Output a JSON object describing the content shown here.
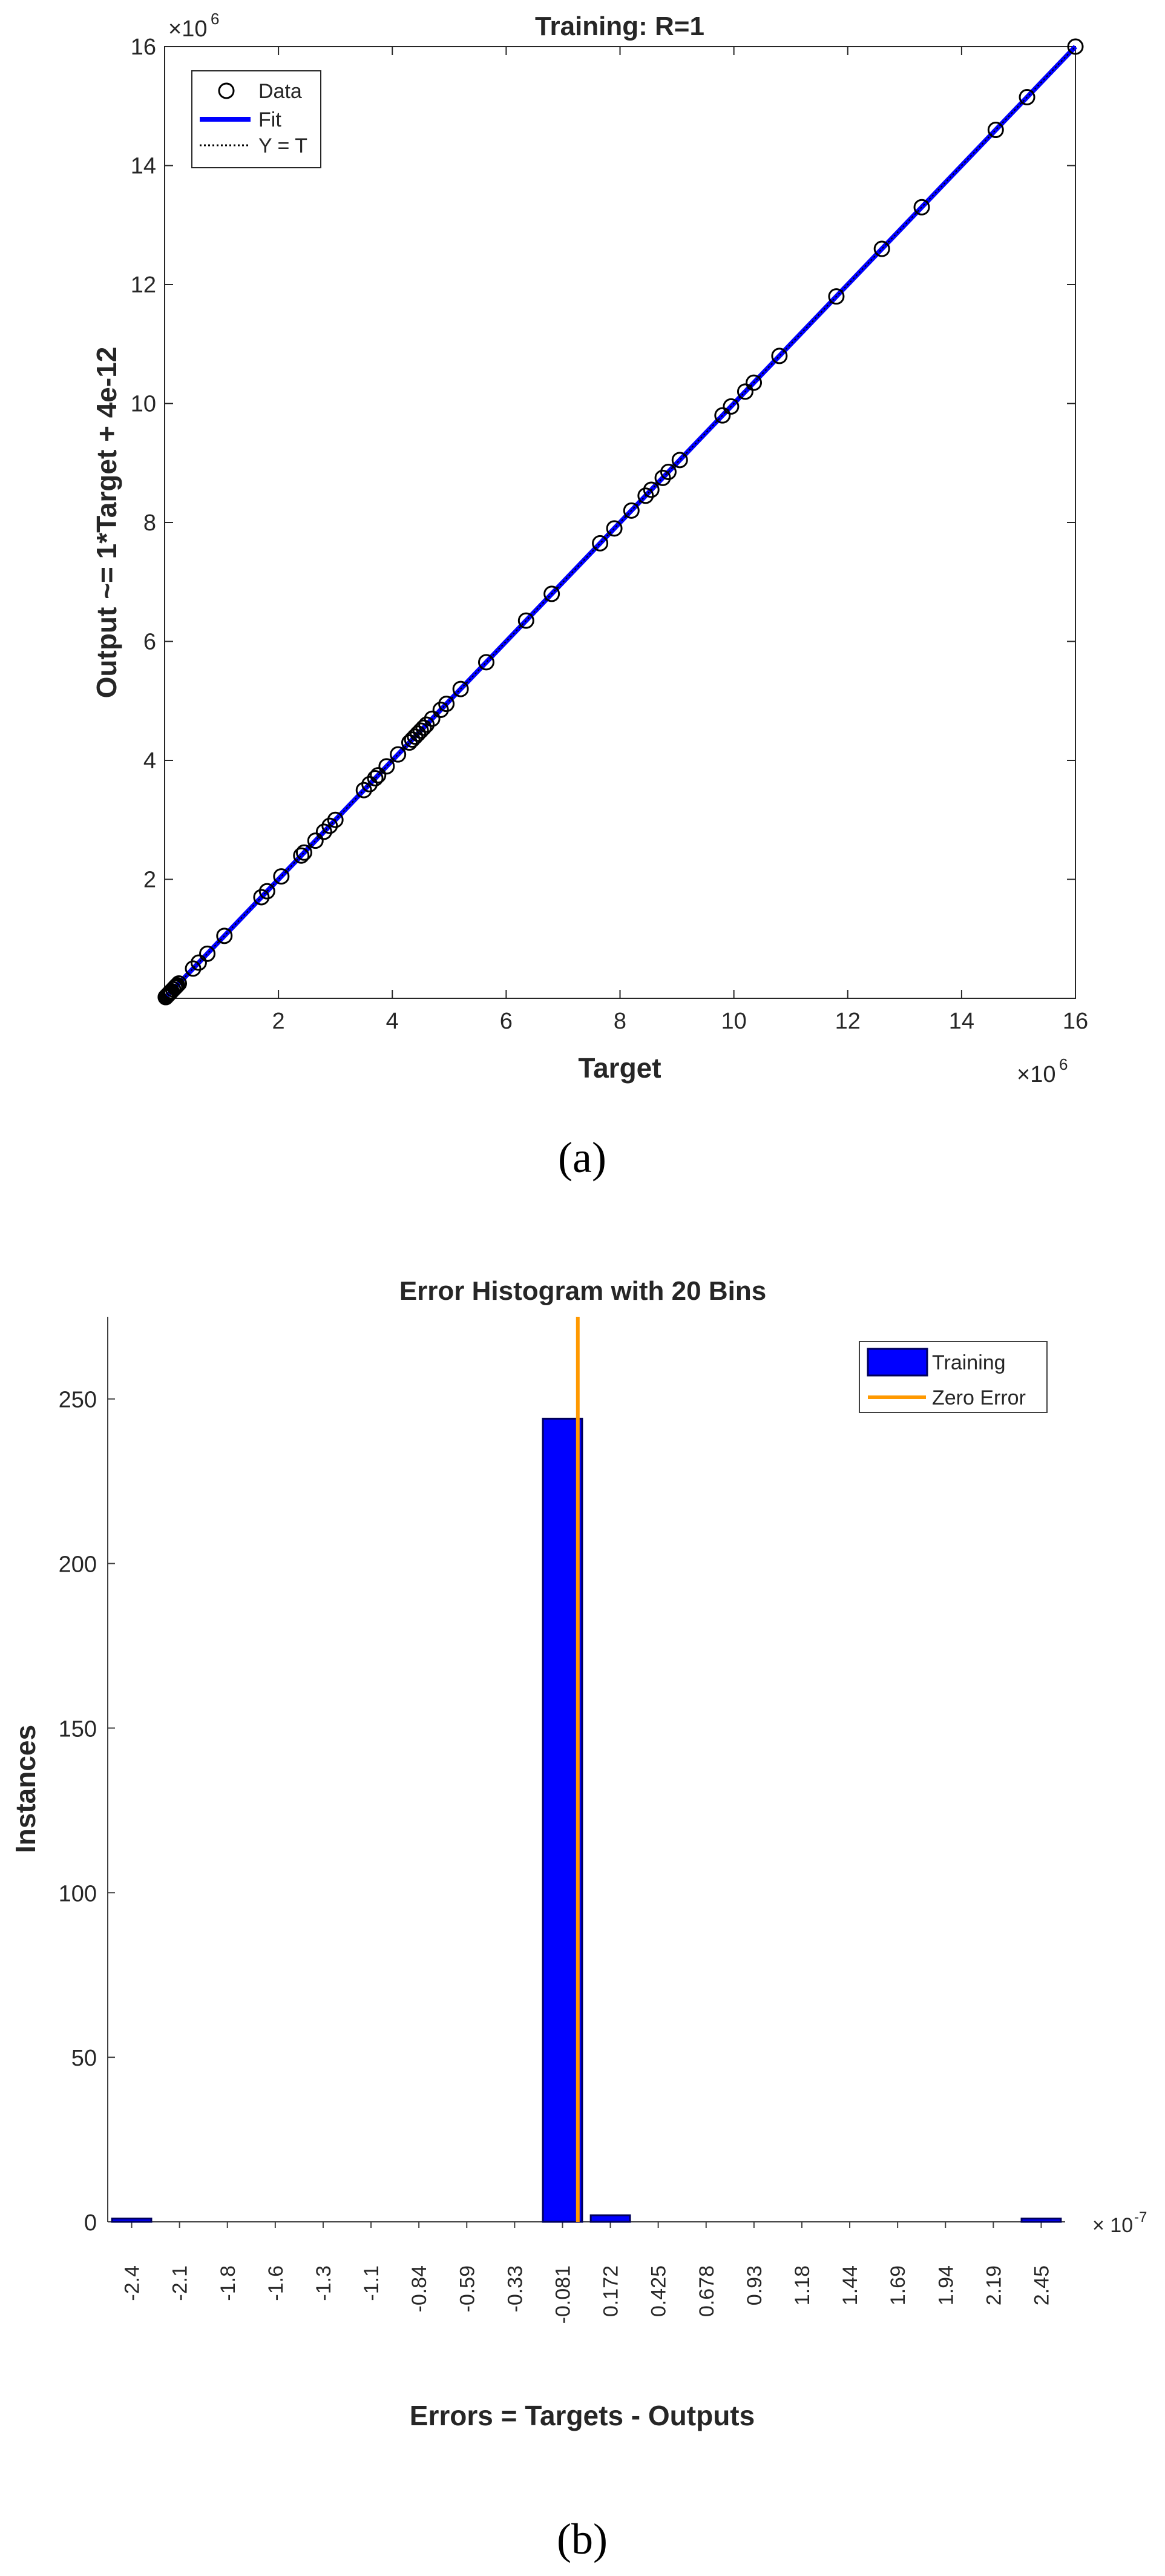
{
  "captions": {
    "a": "(a)",
    "b": "(b)"
  },
  "chart_data": [
    {
      "type": "scatter",
      "title": "Training: R=1",
      "xlabel": "Target",
      "ylabel": "Output ~= 1*Target + 4e-12",
      "x_exponent_label": "×10^6",
      "y_exponent_label": "×10^6",
      "xlim": [
        0,
        16
      ],
      "ylim": [
        0,
        16
      ],
      "xticks": [
        "2",
        "4",
        "6",
        "8",
        "10",
        "12",
        "14",
        "16"
      ],
      "yticks": [
        "2",
        "4",
        "6",
        "8",
        "10",
        "12",
        "14",
        "16"
      ],
      "grid": false,
      "legend_position": "top-left",
      "colors": {
        "data": "#000000",
        "fit": "#0000ff",
        "yt": "#000000",
        "axis": "#262626"
      },
      "series": [
        {
          "name": "Data",
          "marker": "circle",
          "x": [
            0.02,
            0.04,
            0.06,
            0.08,
            0.1,
            0.12,
            0.15,
            0.18,
            0.2,
            0.22,
            0.25,
            0.5,
            0.6,
            0.75,
            1.05,
            1.7,
            1.8,
            2.05,
            2.4,
            2.45,
            2.65,
            2.8,
            2.9,
            3.0,
            3.5,
            3.6,
            3.7,
            3.75,
            3.9,
            4.1,
            4.3,
            4.35,
            4.4,
            4.45,
            4.5,
            4.55,
            4.6,
            4.7,
            4.85,
            4.95,
            5.2,
            5.65,
            6.35,
            6.8,
            7.65,
            7.9,
            8.2,
            8.45,
            8.55,
            8.75,
            8.85,
            9.05,
            9.8,
            9.95,
            10.2,
            10.35,
            10.8,
            11.8,
            12.6,
            13.3,
            14.6,
            15.15,
            16.0
          ],
          "y": [
            0.02,
            0.04,
            0.06,
            0.08,
            0.1,
            0.12,
            0.15,
            0.18,
            0.2,
            0.22,
            0.25,
            0.5,
            0.6,
            0.75,
            1.05,
            1.7,
            1.8,
            2.05,
            2.4,
            2.45,
            2.65,
            2.8,
            2.9,
            3.0,
            3.5,
            3.6,
            3.7,
            3.75,
            3.9,
            4.1,
            4.3,
            4.35,
            4.4,
            4.45,
            4.5,
            4.55,
            4.6,
            4.7,
            4.85,
            4.95,
            5.2,
            5.65,
            6.35,
            6.8,
            7.65,
            7.9,
            8.2,
            8.45,
            8.55,
            8.75,
            8.85,
            9.05,
            9.8,
            9.95,
            10.2,
            10.35,
            10.8,
            11.8,
            12.6,
            13.3,
            14.6,
            15.15,
            16.0
          ]
        },
        {
          "name": "Fit",
          "type": "line",
          "x": [
            0,
            16
          ],
          "y": [
            0,
            16
          ]
        },
        {
          "name": "Y = T",
          "type": "line",
          "style": "dotted",
          "x": [
            0,
            16
          ],
          "y": [
            0,
            16
          ]
        }
      ]
    },
    {
      "type": "bar",
      "title": "Error Histogram with 20 Bins",
      "xlabel": "Errors = Targets - Outputs",
      "ylabel": "Instances",
      "x_exponent_label": "× 10^-7",
      "categories": [
        "-2.4",
        "-2.1",
        "-1.8",
        "-1.6",
        "-1.3",
        "-1.1",
        "-0.84",
        "-0.59",
        "-0.33",
        "-0.081",
        "0.172",
        "0.425",
        "0.678",
        "0.93",
        "1.18",
        "1.44",
        "1.69",
        "1.94",
        "2.19",
        "2.45"
      ],
      "series": [
        {
          "name": "Training",
          "values": [
            1,
            0,
            0,
            0,
            0,
            0,
            0,
            0,
            0,
            244,
            2,
            0,
            0,
            0,
            0,
            0,
            0,
            0,
            0,
            1
          ]
        },
        {
          "name": "Zero Error",
          "type": "vertical-line",
          "x": 0
        }
      ],
      "ylim": [
        0,
        270
      ],
      "yticks": [
        "0",
        "50",
        "100",
        "150",
        "200",
        "250"
      ],
      "grid": false,
      "legend_position": "top-right",
      "colors": {
        "bar": "#0000ff",
        "bar_edge": "#00005a",
        "zero_error": "#ff9900",
        "axis": "#404040"
      }
    }
  ]
}
